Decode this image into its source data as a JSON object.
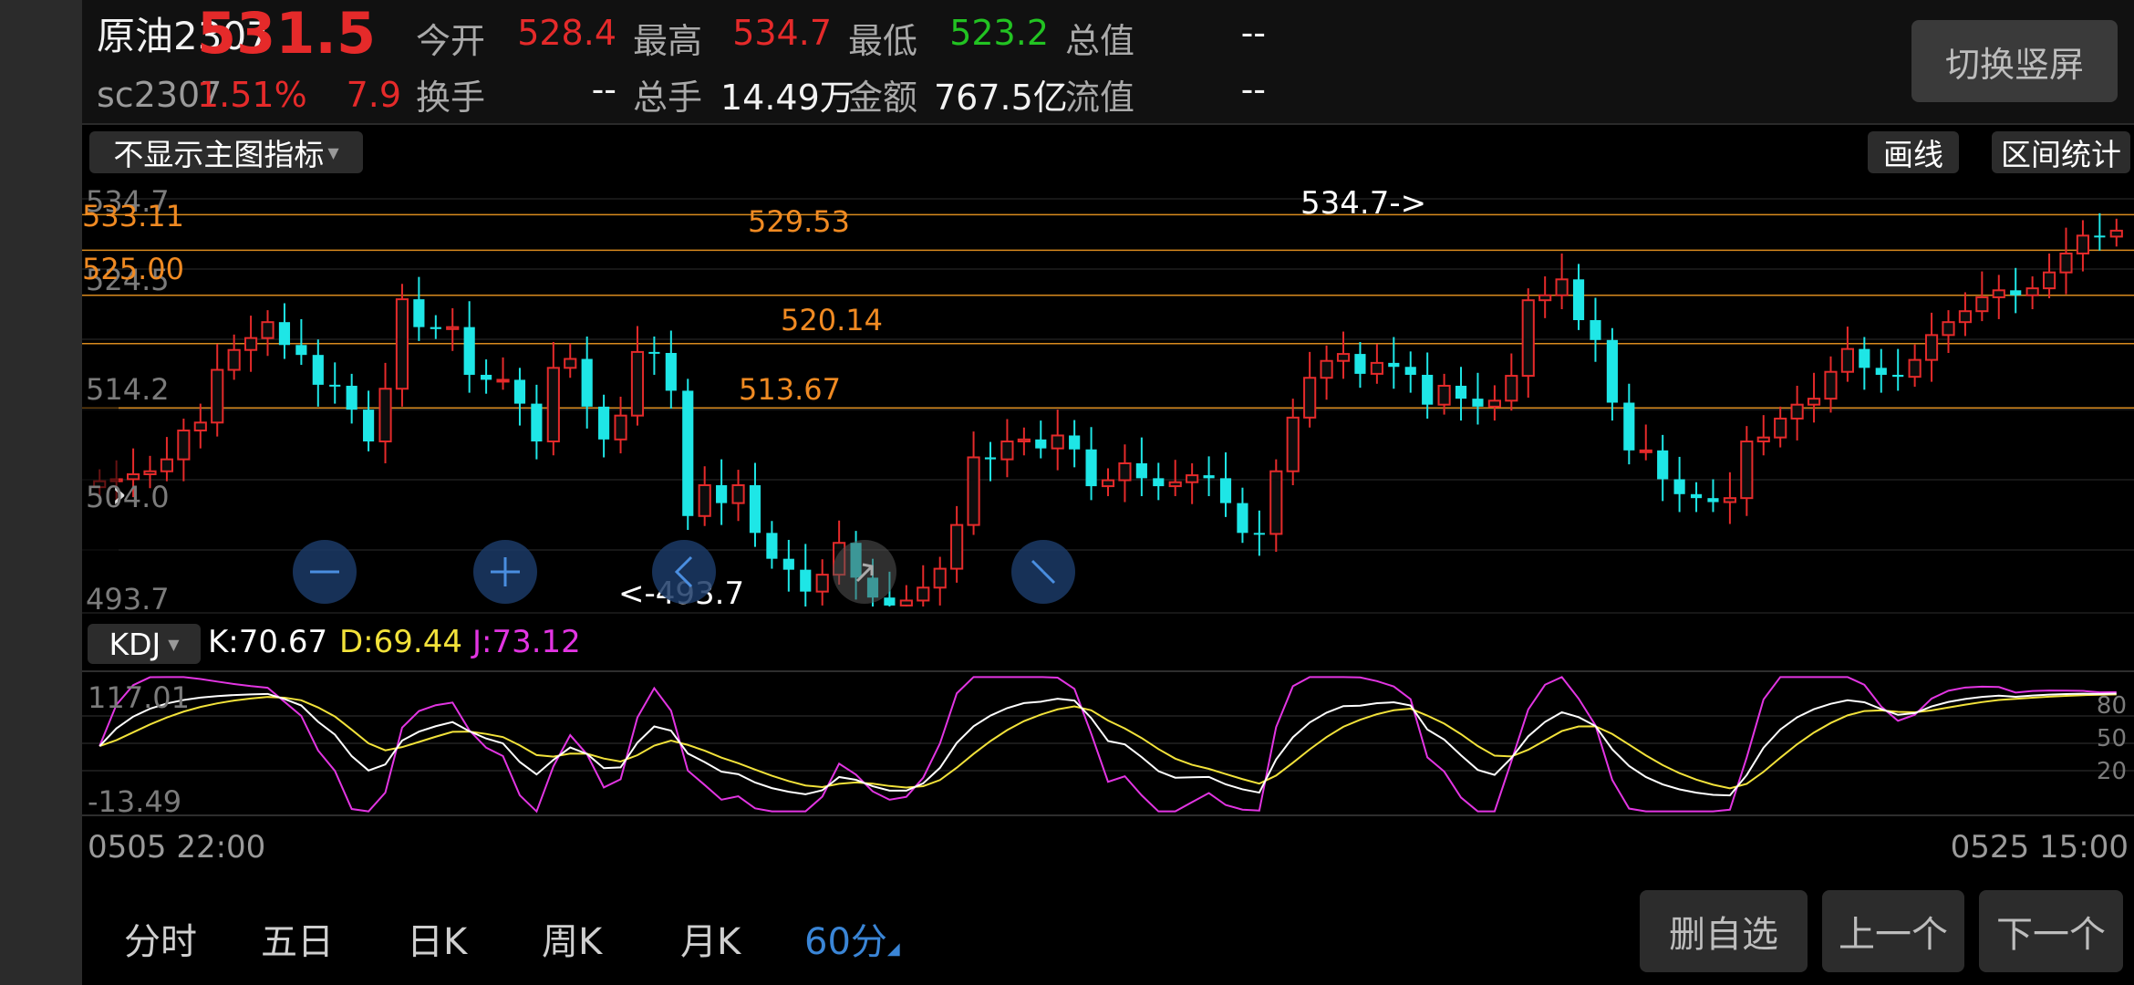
{
  "header": {
    "name": "原油2307",
    "price": "531.5",
    "code": "sc2307",
    "change_pct": "1.51%",
    "change": "7.9",
    "fields": [
      {
        "label": "今开",
        "value": "528.4",
        "color": "#e52a2a"
      },
      {
        "label": "最高",
        "value": "534.7",
        "color": "#e52a2a"
      },
      {
        "label": "最低",
        "value": "523.2",
        "color": "#22c322"
      },
      {
        "label": "总值",
        "value": "--",
        "color": "#f2f2f2"
      },
      {
        "label": "换手",
        "value": "--",
        "color": "#f2f2f2"
      },
      {
        "label": "总手",
        "value": "14.49万",
        "color": "#f2f2f2"
      },
      {
        "label": "金额",
        "value": "767.5亿",
        "color": "#f2f2f2"
      },
      {
        "label": "流值",
        "value": "--",
        "color": "#f2f2f2"
      }
    ],
    "switch_label": "切换竖屏"
  },
  "toolbar": {
    "indicator_select": "不显示主图指标",
    "draw_label": "画线",
    "range_stats_label": "区间统计"
  },
  "price_axis": [
    "534.7",
    "524.5",
    "514.2",
    "504.0",
    "493.7"
  ],
  "drawn_lines": [
    "533.11",
    "525.00",
    "529.53",
    "520.14",
    "513.67"
  ],
  "markers": {
    "high": "534.7->",
    "low": "<-493.7"
  },
  "kdj": {
    "select": "KDJ",
    "k": "K:70.67",
    "d": "D:69.44",
    "j": "J:73.12",
    "axis_top": "117.01",
    "axis_bottom": "-13.49",
    "levels": [
      "80",
      "50",
      "20"
    ]
  },
  "time_axis": {
    "start": "0505 22:00",
    "end": "0525 15:00"
  },
  "tabs": [
    {
      "label": "分时",
      "active": false
    },
    {
      "label": "五日",
      "active": false
    },
    {
      "label": "日K",
      "active": false
    },
    {
      "label": "周K",
      "active": false
    },
    {
      "label": "月K",
      "active": false
    },
    {
      "label": "60分",
      "active": true
    }
  ],
  "buttons": {
    "delete_fav": "删自选",
    "prev": "上一个",
    "next": "下一个"
  },
  "colors": {
    "up": "#e52a2a",
    "down": "#1ee6e6",
    "drawn_line": "#d98a1e",
    "k": "#ffffff",
    "d": "#f2e23a",
    "j": "#e235e2",
    "accent": "#3a85d6"
  },
  "chart_data": [
    {
      "type": "candlestick",
      "title": "原油2307 60分",
      "ylim": [
        493.7,
        534.7
      ],
      "x_start": "0505 22:00",
      "x_end": "0525 15:00",
      "high": 534.7,
      "low": 493.7,
      "close_series": [
        506.3,
        506.5,
        507.0,
        507.3,
        508.5,
        511.4,
        512.2,
        517.5,
        519.5,
        520.7,
        522.3,
        520.0,
        519.0,
        516.0,
        515.9,
        513.5,
        510.3,
        515.6,
        524.6,
        521.8,
        521.6,
        521.8,
        517.0,
        516.5,
        516.5,
        514.1,
        510.3,
        517.7,
        518.6,
        513.8,
        510.5,
        512.9,
        519.3,
        519.2,
        515.4,
        502.8,
        505.9,
        504.1,
        505.9,
        501.1,
        498.5,
        497.4,
        495.2,
        496.9,
        500.1,
        496.6,
        494.6,
        493.8,
        494.3,
        495.6,
        497.5,
        501.9,
        508.7,
        508.5,
        510.3,
        510.5,
        509.6,
        510.9,
        509.5,
        505.8,
        506.4,
        508.1,
        506.6,
        505.8,
        506.2,
        506.9,
        506.6,
        504.1,
        501.1,
        501.0,
        507.3,
        512.7,
        516.7,
        518.4,
        519.1,
        517.1,
        518.2,
        517.8,
        517.0,
        514.0,
        515.9,
        514.6,
        513.8,
        514.4,
        516.9,
        524.5,
        525.0,
        526.6,
        522.5,
        520.5,
        514.2,
        509.4,
        509.4,
        506.5,
        505.0,
        504.6,
        504.2,
        504.6,
        510.3,
        510.7,
        512.6,
        514.0,
        514.6,
        517.3,
        519.6,
        517.7,
        517.0,
        516.8,
        518.5,
        521.0,
        522.3,
        523.4,
        524.8,
        525.5,
        525.0,
        525.7,
        527.3,
        529.2,
        531.0,
        530.9,
        531.5
      ],
      "annotations": [
        {
          "label": "533.11",
          "price": 533.11
        },
        {
          "label": "529.53",
          "price": 529.53
        },
        {
          "label": "525.00",
          "price": 525.0
        },
        {
          "label": "520.14",
          "price": 520.14
        },
        {
          "label": "513.67",
          "price": 513.67
        }
      ]
    },
    {
      "type": "line",
      "title": "KDJ",
      "ylim": [
        -13.49,
        117.01
      ],
      "series": [
        {
          "name": "K",
          "last": 70.67
        },
        {
          "name": "D",
          "last": 69.44
        },
        {
          "name": "J",
          "last": 73.12
        }
      ]
    }
  ]
}
